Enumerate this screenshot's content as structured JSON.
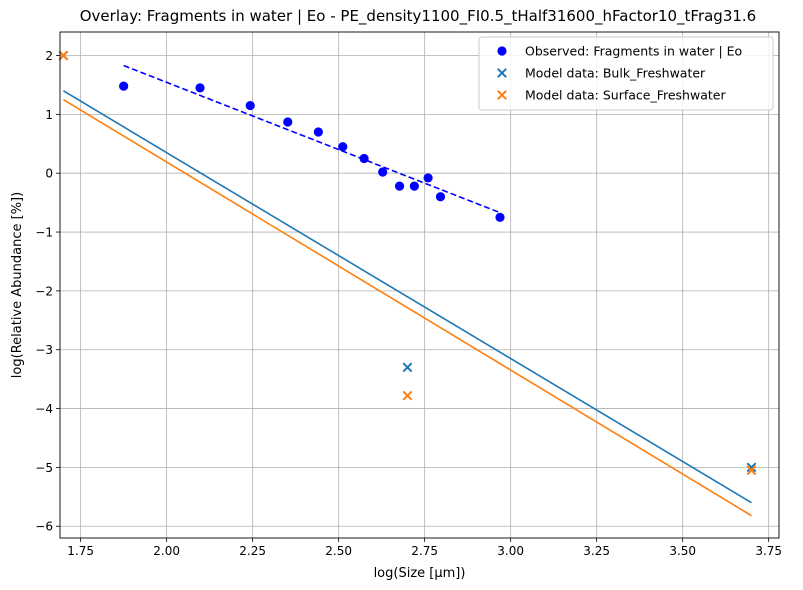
{
  "chart_data": {
    "type": "scatter",
    "title": "Overlay: Fragments in water | Eo - PE_density1100_FI0.5_tHalf31600_hFactor10_tFrag31.6",
    "xlabel": "log(Size [µm])",
    "ylabel": "log(Relative Abundance [%])",
    "xlim": [
      1.69,
      3.78
    ],
    "ylim": [
      -6.2,
      2.4
    ],
    "xticks": [
      1.75,
      2.0,
      2.25,
      2.5,
      2.75,
      3.0,
      3.25,
      3.5,
      3.75
    ],
    "xtick_labels": [
      "1.75",
      "2.00",
      "2.25",
      "2.50",
      "2.75",
      "3.00",
      "3.25",
      "3.50",
      "3.75"
    ],
    "yticks": [
      -6,
      -5,
      -4,
      -3,
      -2,
      -1,
      0,
      1,
      2
    ],
    "ytick_labels": [
      "−6",
      "−5",
      "−4",
      "−3",
      "−2",
      "−1",
      "0",
      "1",
      "2"
    ],
    "grid": true,
    "legend_position": "top-right",
    "series": [
      {
        "name": "Observed: Fragments in water | Eo",
        "kind": "scatter",
        "marker": "circle",
        "color": "#0000ff",
        "x": [
          1.875,
          2.097,
          2.243,
          2.352,
          2.441,
          2.512,
          2.574,
          2.628,
          2.677,
          2.72,
          2.76,
          2.796,
          2.969
        ],
        "y": [
          1.48,
          1.45,
          1.15,
          0.87,
          0.7,
          0.45,
          0.25,
          0.02,
          -0.22,
          -0.22,
          -0.08,
          -0.4,
          -0.75
        ]
      },
      {
        "name": "Model data: Bulk_Freshwater",
        "kind": "scatter",
        "marker": "x",
        "color": "#1f77b4",
        "x": [
          1.7,
          2.7,
          3.7
        ],
        "y": [
          2.0,
          -3.3,
          -5.0
        ]
      },
      {
        "name": "Model data: Surface_Freshwater",
        "kind": "scatter",
        "marker": "x",
        "color": "#ff7f0e",
        "x": [
          1.7,
          2.7,
          3.7
        ],
        "y": [
          2.0,
          -3.78,
          -5.05
        ]
      },
      {
        "kind": "line",
        "style": "dashed",
        "color": "#0000ff",
        "x": [
          1.875,
          2.969
        ],
        "y": [
          1.83,
          -0.67
        ]
      },
      {
        "kind": "line",
        "style": "solid",
        "color": "#1f77b4",
        "x": [
          1.7,
          3.7
        ],
        "y": [
          1.4,
          -5.6
        ]
      },
      {
        "kind": "line",
        "style": "solid",
        "color": "#ff7f0e",
        "x": [
          1.7,
          3.7
        ],
        "y": [
          1.25,
          -5.82
        ]
      }
    ]
  }
}
